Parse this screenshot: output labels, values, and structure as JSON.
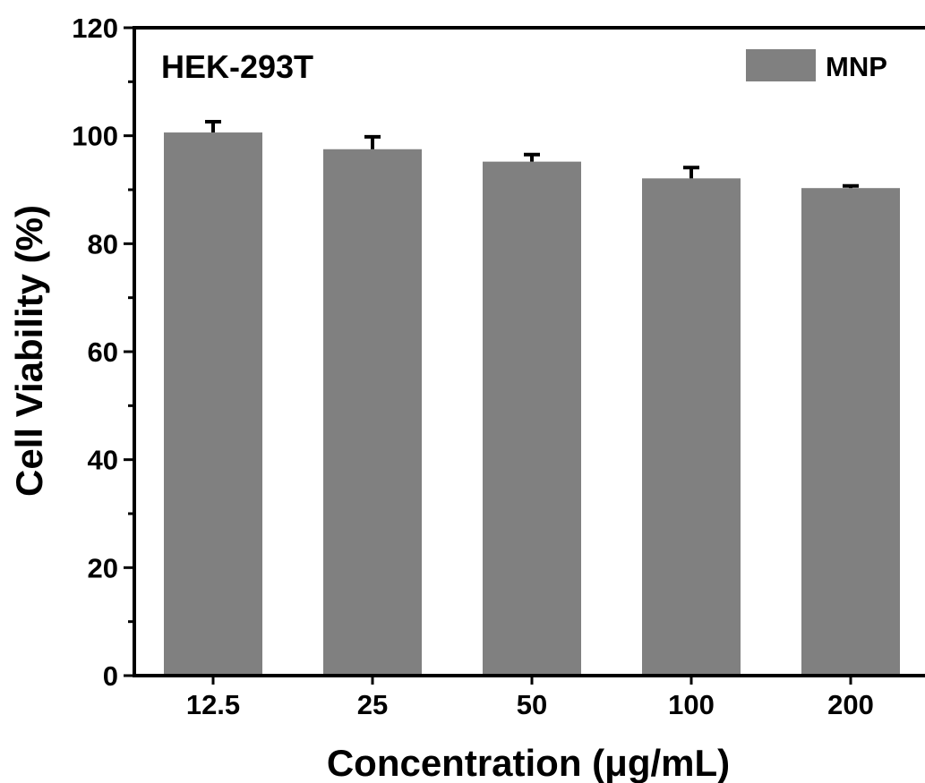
{
  "chart_data": {
    "type": "bar",
    "panel_label": "HEK-293T",
    "xlabel": "Concentration (μg/mL)",
    "ylabel": "Cell Viability (%)",
    "categories": [
      "12.5",
      "25",
      "50",
      "100",
      "200"
    ],
    "series": [
      {
        "name": "MNP",
        "color": "#808080",
        "values": [
          100.6,
          97.5,
          95.2,
          92.1,
          90.3
        ],
        "errors": [
          2.0,
          2.3,
          1.3,
          2.0,
          0.4
        ]
      }
    ],
    "ylim": [
      0,
      120
    ],
    "yticks": [
      0,
      20,
      40,
      60,
      80,
      100,
      120
    ],
    "grid": false,
    "legend_position": "top-right"
  }
}
